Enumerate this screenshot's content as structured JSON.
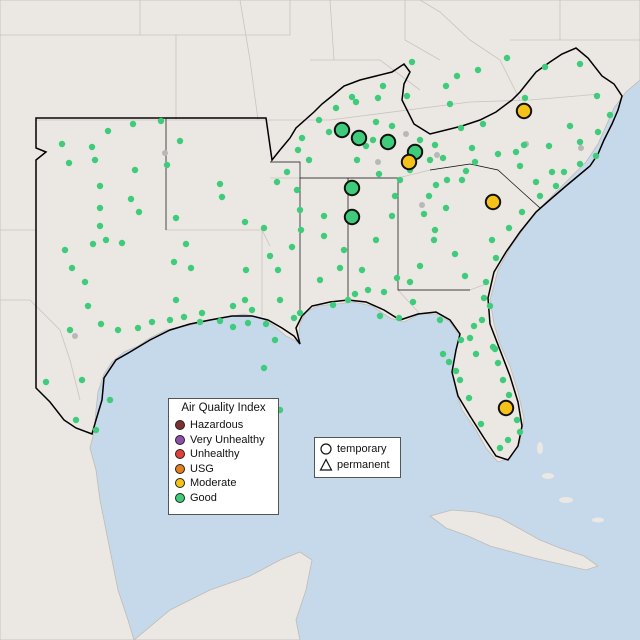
{
  "legend": {
    "title": "Air Quality Index",
    "items": [
      {
        "label": "Hazardous",
        "color": "#7e2f2f"
      },
      {
        "label": "Very Unhealthy",
        "color": "#8e4fa8"
      },
      {
        "label": "Unhealthy",
        "color": "#e0413a"
      },
      {
        "label": "USG",
        "color": "#e57e1c"
      },
      {
        "label": "Moderate",
        "color": "#f5c21a"
      },
      {
        "label": "Good",
        "color": "#3ecc7a"
      }
    ]
  },
  "shape_legend": {
    "temporary": "temporary",
    "permanent": "permanent"
  },
  "colors": {
    "ocean": "#c6d9ea",
    "land": "#ebe7e2",
    "good": "#3ecc7a",
    "moderate": "#f5c21a",
    "nodata": "#b8b8b8"
  },
  "monitors": {
    "good_large": [
      [
        342,
        130
      ],
      [
        359,
        138
      ],
      [
        388,
        142
      ],
      [
        415,
        152
      ],
      [
        352,
        188
      ],
      [
        352,
        217
      ]
    ],
    "moderate_large": [
      [
        524,
        111
      ],
      [
        409,
        162
      ],
      [
        493,
        202
      ],
      [
        506,
        408
      ]
    ],
    "good_small": [
      [
        412,
        62
      ],
      [
        383,
        86
      ],
      [
        352,
        97
      ],
      [
        336,
        108
      ],
      [
        319,
        120
      ],
      [
        302,
        138
      ],
      [
        298,
        150
      ],
      [
        309,
        160
      ],
      [
        287,
        172
      ],
      [
        277,
        182
      ],
      [
        297,
        190
      ],
      [
        300,
        210
      ],
      [
        301,
        230
      ],
      [
        292,
        247
      ],
      [
        278,
        270
      ],
      [
        280,
        300
      ],
      [
        294,
        318
      ],
      [
        266,
        324
      ],
      [
        275,
        340
      ],
      [
        264,
        368
      ],
      [
        245,
        300
      ],
      [
        248,
        323
      ],
      [
        233,
        327
      ],
      [
        220,
        321
      ],
      [
        202,
        313
      ],
      [
        184,
        317
      ],
      [
        170,
        320
      ],
      [
        152,
        322
      ],
      [
        138,
        328
      ],
      [
        118,
        330
      ],
      [
        101,
        324
      ],
      [
        88,
        306
      ],
      [
        85,
        282
      ],
      [
        72,
        268
      ],
      [
        65,
        250
      ],
      [
        93,
        244
      ],
      [
        106,
        240
      ],
      [
        122,
        243
      ],
      [
        100,
        226
      ],
      [
        100,
        208
      ],
      [
        100,
        186
      ],
      [
        95,
        160
      ],
      [
        92,
        147
      ],
      [
        62,
        144
      ],
      [
        69,
        163
      ],
      [
        108,
        131
      ],
      [
        133,
        124
      ],
      [
        161,
        121
      ],
      [
        180,
        141
      ],
      [
        167,
        165
      ],
      [
        135,
        170
      ],
      [
        131,
        199
      ],
      [
        139,
        212
      ],
      [
        176,
        218
      ],
      [
        186,
        244
      ],
      [
        174,
        262
      ],
      [
        191,
        268
      ],
      [
        220,
        184
      ],
      [
        222,
        197
      ],
      [
        245,
        222
      ],
      [
        264,
        228
      ],
      [
        270,
        256
      ],
      [
        252,
        310
      ],
      [
        233,
        306
      ],
      [
        246,
        270
      ],
      [
        324,
        236
      ],
      [
        324,
        216
      ],
      [
        344,
        250
      ],
      [
        362,
        270
      ],
      [
        376,
        240
      ],
      [
        392,
        216
      ],
      [
        395,
        196
      ],
      [
        379,
        174
      ],
      [
        357,
        160
      ],
      [
        329,
        132
      ],
      [
        356,
        102
      ],
      [
        378,
        98
      ],
      [
        407,
        96
      ],
      [
        446,
        86
      ],
      [
        457,
        76
      ],
      [
        478,
        70
      ],
      [
        507,
        58
      ],
      [
        545,
        67
      ],
      [
        580,
        64
      ],
      [
        597,
        96
      ],
      [
        610,
        115
      ],
      [
        598,
        132
      ],
      [
        580,
        142
      ],
      [
        570,
        126
      ],
      [
        549,
        146
      ],
      [
        524,
        145
      ],
      [
        516,
        152
      ],
      [
        498,
        154
      ],
      [
        475,
        162
      ],
      [
        466,
        171
      ],
      [
        447,
        180
      ],
      [
        436,
        185
      ],
      [
        429,
        196
      ],
      [
        424,
        214
      ],
      [
        434,
        240
      ],
      [
        420,
        266
      ],
      [
        410,
        282
      ],
      [
        384,
        292
      ],
      [
        348,
        300
      ],
      [
        333,
        305
      ],
      [
        300,
        313
      ],
      [
        397,
        278
      ],
      [
        413,
        302
      ],
      [
        440,
        320
      ],
      [
        470,
        338
      ],
      [
        482,
        320
      ],
      [
        490,
        306
      ],
      [
        486,
        282
      ],
      [
        496,
        258
      ],
      [
        492,
        240
      ],
      [
        509,
        228
      ],
      [
        522,
        212
      ],
      [
        540,
        196
      ],
      [
        556,
        186
      ],
      [
        564,
        172
      ],
      [
        580,
        164
      ],
      [
        596,
        156
      ],
      [
        552,
        172
      ],
      [
        536,
        182
      ],
      [
        520,
        166
      ],
      [
        472,
        148
      ],
      [
        461,
        128
      ],
      [
        450,
        104
      ],
      [
        483,
        124
      ],
      [
        525,
        98
      ],
      [
        462,
        180
      ],
      [
        446,
        208
      ],
      [
        435,
        230
      ],
      [
        455,
        254
      ],
      [
        465,
        276
      ],
      [
        484,
        298
      ],
      [
        474,
        326
      ],
      [
        493,
        347
      ],
      [
        498,
        363
      ],
      [
        503,
        380
      ],
      [
        509,
        395
      ],
      [
        517,
        420
      ],
      [
        520,
        432
      ],
      [
        508,
        440
      ],
      [
        500,
        448
      ],
      [
        481,
        424
      ],
      [
        469,
        398
      ],
      [
        460,
        380
      ],
      [
        449,
        362
      ],
      [
        443,
        354
      ],
      [
        456,
        371
      ],
      [
        461,
        340
      ],
      [
        476,
        354
      ],
      [
        495,
        349
      ],
      [
        82,
        380
      ],
      [
        46,
        382
      ],
      [
        76,
        420
      ],
      [
        96,
        430
      ],
      [
        70,
        330
      ],
      [
        110,
        400
      ],
      [
        200,
        322
      ],
      [
        176,
        300
      ],
      [
        280,
        410
      ],
      [
        320,
        280
      ],
      [
        340,
        268
      ],
      [
        355,
        294
      ],
      [
        368,
        290
      ],
      [
        380,
        316
      ],
      [
        399,
        318
      ],
      [
        400,
        180
      ],
      [
        410,
        170
      ],
      [
        420,
        150
      ],
      [
        430,
        160
      ],
      [
        443,
        158
      ],
      [
        392,
        126
      ],
      [
        376,
        122
      ],
      [
        366,
        146
      ],
      [
        373,
        140
      ],
      [
        420,
        140
      ],
      [
        435,
        145
      ]
    ],
    "nodata_small": [
      [
        165,
        153
      ],
      [
        406,
        134
      ],
      [
        378,
        162
      ],
      [
        437,
        155
      ],
      [
        422,
        205
      ],
      [
        526,
        144
      ],
      [
        581,
        148
      ],
      [
        75,
        336
      ]
    ]
  }
}
